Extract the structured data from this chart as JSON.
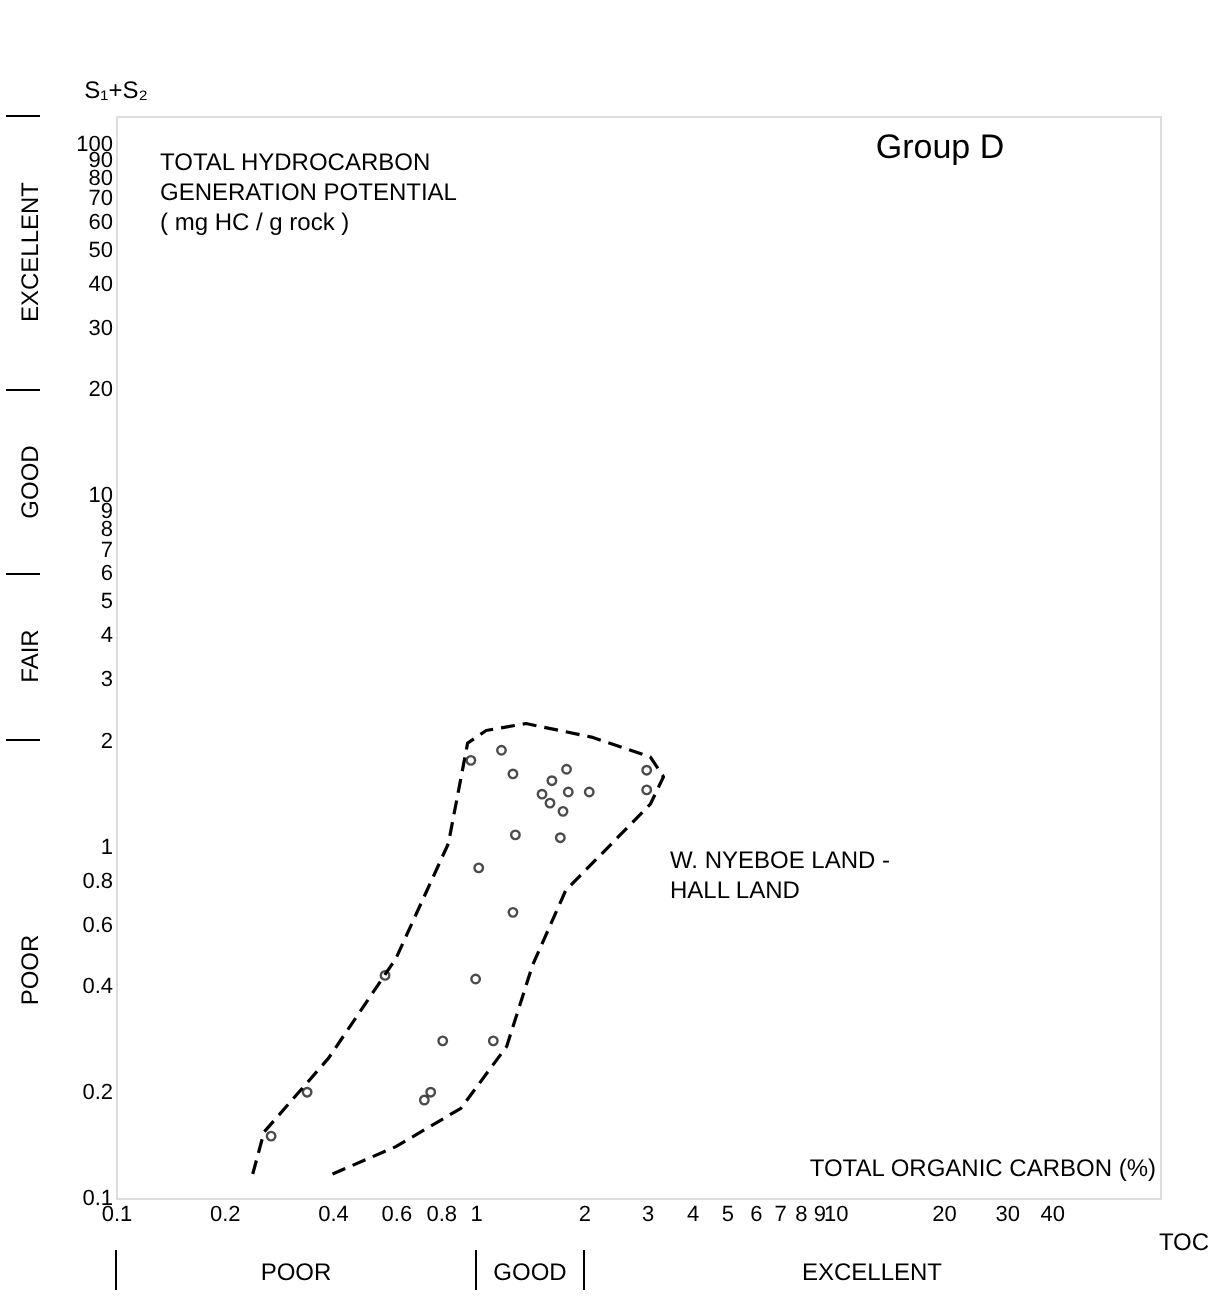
{
  "chart_data": {
    "type": "scatter",
    "title": "Group D",
    "ylabel": "S₁+S₂",
    "xlabel": "TOTAL ORGANIC CARBON (%)",
    "annotations": [
      "TOTAL HYDROCARBON\nGENERATION POTENTIAL\n( mg HC / g rock )",
      "TOC",
      "W. NYEBOE LAND -\nHALL LAND",
      "POOR",
      "FAIR",
      "GOOD",
      "EXCELLENT",
      "POOR",
      "GOOD",
      "EXCELLENT"
    ],
    "log": "xy",
    "grid": false,
    "marker": "circle",
    "xlim": [
      0.1,
      80
    ],
    "ylim": [
      0.1,
      120
    ],
    "xticks": [
      0.1,
      0.2,
      0.4,
      0.6,
      0.8,
      1,
      2,
      3,
      4,
      5,
      6,
      7,
      8,
      9,
      10,
      20,
      30,
      40
    ],
    "yticks": [
      0.1,
      0.2,
      0.4,
      0.6,
      0.8,
      1,
      2,
      3,
      4,
      5,
      6,
      7,
      8,
      9,
      10,
      20,
      30,
      40,
      50,
      60,
      70,
      80,
      90,
      100
    ],
    "series": [
      {
        "color": "#000000",
        "x": [
          0.97,
          1.18,
          1.27,
          1.79,
          1.63,
          1.81,
          2.07,
          1.53,
          1.61,
          1.75,
          2.99,
          2.99,
          1.29,
          1.72,
          1.02,
          1.27,
          0.56,
          1.0,
          0.81,
          1.12,
          0.72,
          0.75,
          0.34,
          0.27
        ],
        "values": [
          1.76,
          1.88,
          1.61,
          1.66,
          1.54,
          1.43,
          1.43,
          1.41,
          1.33,
          1.26,
          1.65,
          1.45,
          1.08,
          1.06,
          0.87,
          0.65,
          0.43,
          0.42,
          0.28,
          0.28,
          0.19,
          0.2,
          0.2,
          0.15
        ]
      },
      {
        "type": "line",
        "color": "#000000",
        "marker": "none",
        "line_style": "dashed",
        "x": [
          0.24,
          0.258,
          0.39,
          0.6,
          0.84,
          0.95,
          1.07,
          1.38,
          2.1,
          3.06,
          3.33,
          3.06,
          2.48,
          1.78,
          1.44,
          1.22,
          0.91,
          0.6,
          0.4
        ],
        "values": [
          0.117,
          0.154,
          0.25,
          0.48,
          1.02,
          1.97,
          2.14,
          2.24,
          2.05,
          1.8,
          1.58,
          1.32,
          1.06,
          0.75,
          0.46,
          0.27,
          0.18,
          0.14,
          0.117
        ]
      }
    ]
  }
}
